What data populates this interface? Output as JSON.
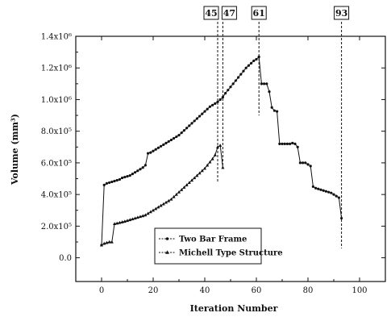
{
  "chart_data": {
    "type": "line",
    "xlabel": "Iteration Number",
    "ylabel": "Volume (mm³)",
    "xlim": [
      -10,
      110
    ],
    "ylim": [
      -150000,
      1400000
    ],
    "xticks": [
      0,
      20,
      40,
      60,
      80,
      100
    ],
    "xtick_labels": [
      "0",
      "20",
      "40",
      "60",
      "80",
      "100"
    ],
    "yticks": [
      0,
      200000,
      400000,
      600000,
      800000,
      1000000,
      1200000,
      1400000
    ],
    "ytick_labels": [
      "0.0",
      "2.0x10⁵",
      "4.0x10⁵",
      "6.0x10⁵",
      "8.0x10⁵",
      "1.0x10⁶",
      "1.2x10⁶",
      "1.4x10⁶"
    ],
    "grid": false,
    "legend_position": "bottom-center",
    "series": [
      {
        "name": "Two Bar Frame",
        "marker": "dot",
        "x": [
          0,
          1,
          2,
          3,
          4,
          5,
          6,
          7,
          8,
          9,
          10,
          11,
          12,
          13,
          14,
          15,
          16,
          17,
          18,
          19,
          20,
          21,
          22,
          23,
          24,
          25,
          26,
          27,
          28,
          29,
          30,
          31,
          32,
          33,
          34,
          35,
          36,
          37,
          38,
          39,
          40,
          41,
          42,
          43,
          44,
          45,
          46,
          47,
          48,
          49,
          50,
          51,
          52,
          53,
          54,
          55,
          56,
          57,
          58,
          59,
          60,
          61,
          62,
          63,
          64,
          65,
          66,
          67,
          68,
          69,
          70,
          71,
          72,
          73,
          74,
          75,
          76,
          77,
          78,
          79,
          80,
          81,
          82,
          83,
          84,
          85,
          86,
          87,
          88,
          89,
          90,
          91,
          92,
          93
        ],
        "y": [
          80000,
          460000,
          470000,
          475000,
          480000,
          485000,
          490000,
          495000,
          505000,
          510000,
          515000,
          520000,
          530000,
          540000,
          550000,
          560000,
          570000,
          585000,
          660000,
          665000,
          675000,
          685000,
          695000,
          705000,
          715000,
          725000,
          735000,
          745000,
          755000,
          765000,
          775000,
          790000,
          805000,
          820000,
          835000,
          850000,
          865000,
          880000,
          895000,
          910000,
          925000,
          940000,
          955000,
          965000,
          975000,
          985000,
          1000000,
          1015000,
          1040000,
          1060000,
          1080000,
          1100000,
          1120000,
          1140000,
          1160000,
          1180000,
          1200000,
          1215000,
          1230000,
          1245000,
          1255000,
          1270000,
          1100000,
          1100000,
          1100000,
          1050000,
          950000,
          930000,
          925000,
          720000,
          720000,
          720000,
          720000,
          720000,
          725000,
          720000,
          700000,
          600000,
          600000,
          600000,
          590000,
          580000,
          450000,
          440000,
          435000,
          430000,
          425000,
          420000,
          415000,
          410000,
          400000,
          390000,
          380000,
          250000
        ]
      },
      {
        "name": "Michell Type Structure",
        "marker": "triangle",
        "x": [
          0,
          1,
          2,
          3,
          4,
          5,
          6,
          7,
          8,
          9,
          10,
          11,
          12,
          13,
          14,
          15,
          16,
          17,
          18,
          19,
          20,
          21,
          22,
          23,
          24,
          25,
          26,
          27,
          28,
          29,
          30,
          31,
          32,
          33,
          34,
          35,
          36,
          37,
          38,
          39,
          40,
          41,
          42,
          43,
          44,
          45,
          46,
          47
        ],
        "y": [
          80000,
          90000,
          95000,
          100000,
          100000,
          215000,
          218000,
          222000,
          226000,
          230000,
          235000,
          240000,
          245000,
          250000,
          255000,
          260000,
          265000,
          270000,
          280000,
          290000,
          300000,
          310000,
          320000,
          330000,
          340000,
          350000,
          360000,
          370000,
          385000,
          400000,
          415000,
          430000,
          445000,
          460000,
          475000,
          490000,
          505000,
          520000,
          535000,
          550000,
          565000,
          585000,
          605000,
          625000,
          650000,
          700000,
          710000,
          570000
        ]
      }
    ],
    "callouts": [
      {
        "label": "45",
        "x": 45,
        "line_top": 1400000,
        "line_bottom": 480000
      },
      {
        "label": "47",
        "x": 47,
        "line_top": 1400000,
        "line_bottom": 580000
      },
      {
        "label": "61",
        "x": 61,
        "line_top": 1400000,
        "line_bottom": 900000
      },
      {
        "label": "93",
        "x": 93,
        "line_top": 1400000,
        "line_bottom": 60000
      }
    ]
  }
}
